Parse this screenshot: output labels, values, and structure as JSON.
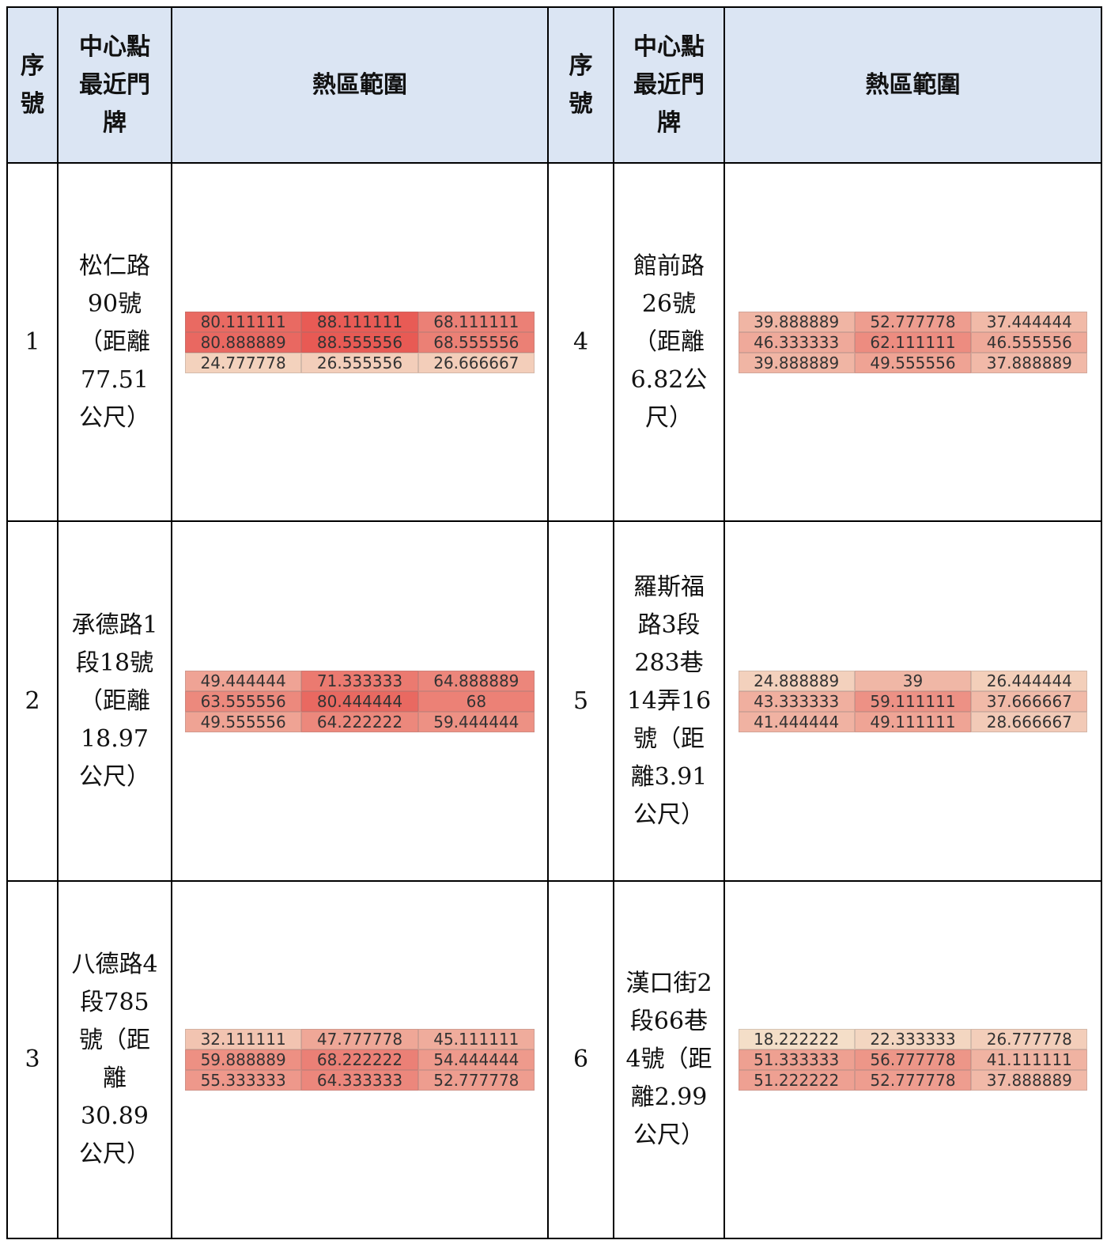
{
  "header": {
    "index": "序號",
    "address": "中心點最近門牌",
    "hotspot": "熱區範圍"
  },
  "entries": [
    {
      "index": 1,
      "address": "松仁路90號（距離77.51公尺）",
      "grid": [
        [
          80.111111,
          88.111111,
          68.111111
        ],
        [
          80.888889,
          88.555556,
          68.555556
        ],
        [
          24.777778,
          26.555556,
          26.666667
        ]
      ]
    },
    {
      "index": 2,
      "address": "承德路1段18號（距離18.97公尺）",
      "grid": [
        [
          49.444444,
          71.333333,
          64.888889
        ],
        [
          63.555556,
          80.444444,
          68
        ],
        [
          49.555556,
          64.222222,
          59.444444
        ]
      ]
    },
    {
      "index": 3,
      "address": "八德路4段785號（距離30.89公尺）",
      "grid": [
        [
          32.111111,
          47.777778,
          45.111111
        ],
        [
          59.888889,
          68.222222,
          54.444444
        ],
        [
          55.333333,
          64.333333,
          52.777778
        ]
      ]
    },
    {
      "index": 4,
      "address": "館前路26號（距離6.82公尺）",
      "grid": [
        [
          39.888889,
          52.777778,
          37.444444
        ],
        [
          46.333333,
          62.111111,
          46.555556
        ],
        [
          39.888889,
          49.555556,
          37.888889
        ]
      ]
    },
    {
      "index": 5,
      "address": "羅斯福路3段283巷14弄16號（距離3.91公尺）",
      "grid": [
        [
          24.888889,
          39,
          26.444444
        ],
        [
          43.333333,
          59.111111,
          37.666667
        ],
        [
          41.444444,
          49.111111,
          28.666667
        ]
      ]
    },
    {
      "index": 6,
      "address": "漢口街2段66巷4號（距離2.99公尺）",
      "grid": [
        [
          18.222222,
          22.333333,
          26.777778
        ],
        [
          51.333333,
          56.777778,
          41.111111
        ],
        [
          51.222222,
          52.777778,
          37.888889
        ]
      ]
    }
  ]
}
